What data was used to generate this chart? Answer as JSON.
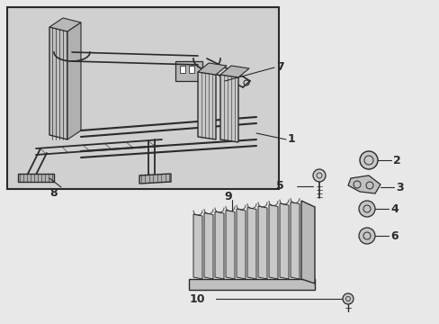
{
  "background_color": "#e8e8e8",
  "line_color": "#2a2a2a",
  "box_bg": "#d8d8d8",
  "fig_w": 4.89,
  "fig_h": 3.6,
  "dpi": 100
}
